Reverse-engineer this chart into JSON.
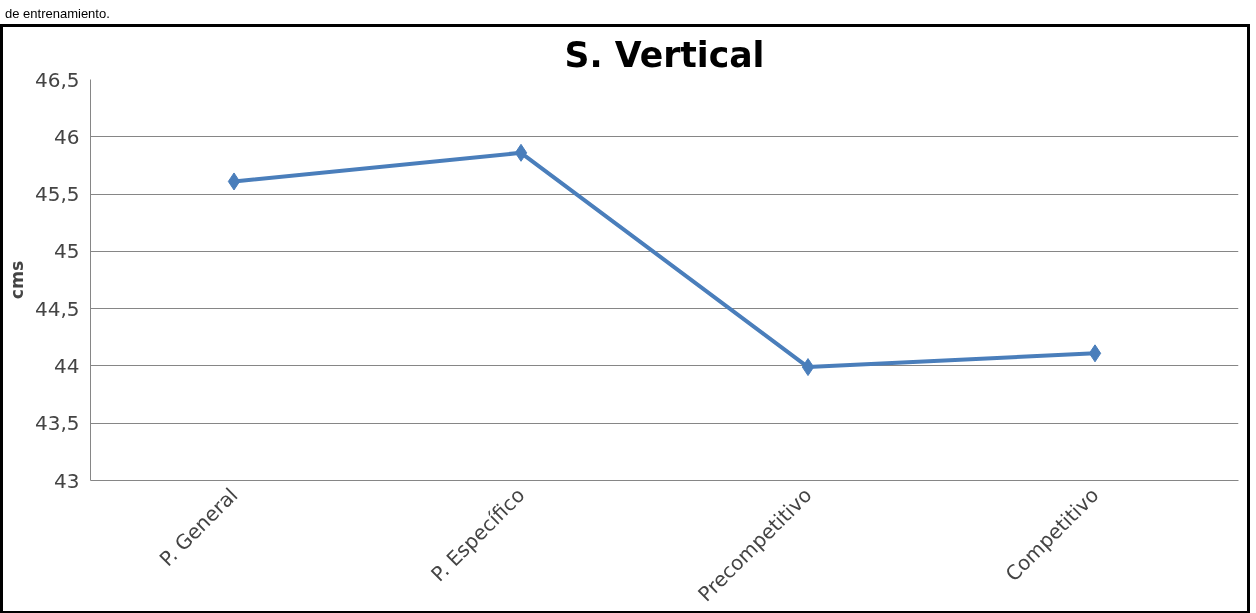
{
  "chart_data": {
    "type": "line",
    "title": "S. Vertical",
    "ylabel": "cms",
    "annotations": [
      "de entrenamiento."
    ],
    "categories": [
      "P. General",
      "P. Específico",
      "Precompetitivo",
      "Competitivo"
    ],
    "series": [
      {
        "color": "#4a7ebb",
        "values": [
          45.61,
          45.86,
          43.99,
          44.11
        ]
      }
    ],
    "ylim": [
      43,
      46.5
    ],
    "yticks": [
      43,
      {
        "value": 43.5,
        "label": "43,5"
      },
      44,
      {
        "value": 44.5,
        "label": "44,5"
      },
      45,
      {
        "value": 45.5,
        "label": "45,5"
      },
      46,
      {
        "value": 46.5,
        "label": "46,5"
      }
    ],
    "grid": "y",
    "marker": "diamond",
    "line_style": "solid"
  }
}
